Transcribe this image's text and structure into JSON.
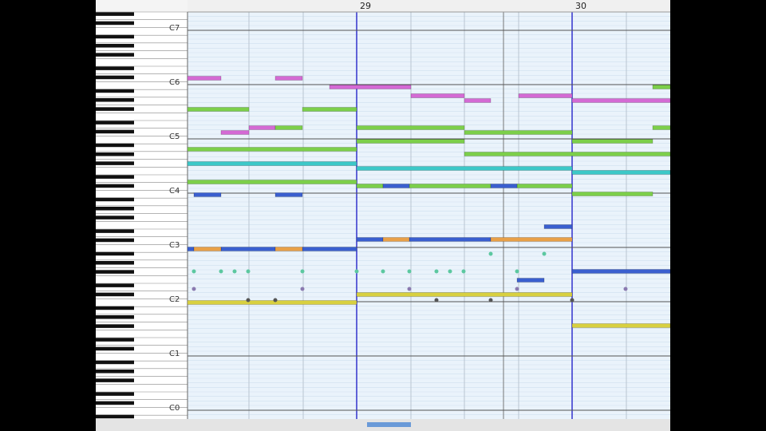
{
  "ruler": {
    "measures": [
      "29",
      "30"
    ]
  },
  "keyboard": {
    "octave_labels": [
      "C7",
      "C6",
      "C5",
      "C4",
      "C3",
      "C2",
      "C1",
      "C0"
    ]
  }
}
